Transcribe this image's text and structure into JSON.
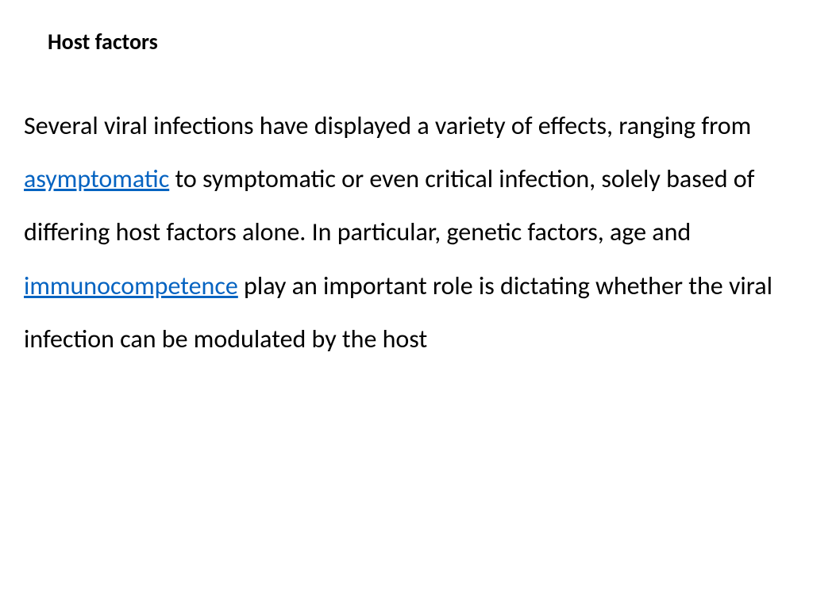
{
  "heading": "Host factors",
  "paragraph": {
    "part1": "Several viral infections have displayed a variety of effects, ranging from ",
    "link1": "asymptomatic",
    "part2": " to symptomatic or even critical infection, solely based of differing host factors alone. In particular, genetic factors, age and ",
    "link2": "immunocompetence",
    "part3": " play an important role is dictating whether the viral infection can be modulated by the host"
  },
  "colors": {
    "text": "#000000",
    "link": "#0563c1",
    "background": "#ffffff"
  },
  "typography": {
    "heading_fontsize": 28,
    "heading_weight": "bold",
    "body_fontsize": 32,
    "body_lineheight": 2.1,
    "font_family": "Calibri, Arial, sans-serif"
  }
}
